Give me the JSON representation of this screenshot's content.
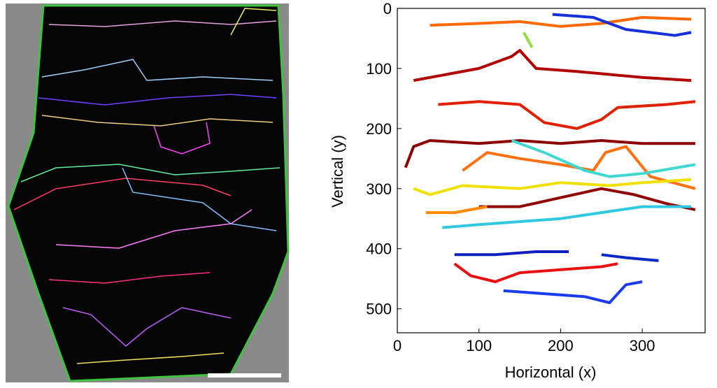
{
  "chart_data": {
    "type": "line",
    "xlabel": "Horizontal (x)",
    "ylabel": "Vertical (y)",
    "xlim": [
      0,
      377
    ],
    "ylim": [
      0,
      540
    ],
    "y_inverted": true,
    "xticks": [
      0,
      100,
      200,
      300
    ],
    "yticks": [
      0,
      100,
      200,
      300,
      400,
      500
    ],
    "series": [
      {
        "color": "#ff6a00",
        "x": [
          40,
          100,
          150,
          200,
          250,
          300,
          360
        ],
        "values": [
          28,
          25,
          22,
          30,
          25,
          15,
          18
        ]
      },
      {
        "color": "#1530d8",
        "x": [
          190,
          240,
          280,
          340,
          360
        ],
        "values": [
          10,
          15,
          35,
          45,
          40
        ]
      },
      {
        "color": "#b00000",
        "x": [
          20,
          60,
          100,
          140,
          150,
          170,
          220,
          260,
          300,
          360
        ],
        "values": [
          120,
          110,
          100,
          80,
          70,
          100,
          105,
          110,
          115,
          120
        ]
      },
      {
        "color": "#e02000",
        "x": [
          50,
          100,
          150,
          180,
          220,
          250,
          270,
          330,
          365
        ],
        "values": [
          160,
          155,
          160,
          190,
          200,
          185,
          165,
          160,
          155
        ]
      },
      {
        "color": "#8b0000",
        "x": [
          10,
          20,
          40,
          100,
          150,
          200,
          250,
          300,
          365
        ],
        "values": [
          265,
          230,
          220,
          225,
          220,
          225,
          220,
          225,
          225
        ]
      },
      {
        "color": "#ff7010",
        "x": [
          80,
          110,
          150,
          200,
          240,
          255,
          280,
          310,
          365
        ],
        "values": [
          270,
          240,
          250,
          260,
          270,
          240,
          230,
          280,
          300
        ]
      },
      {
        "color": "#f0e000",
        "x": [
          20,
          40,
          80,
          150,
          200,
          260,
          300,
          360
        ],
        "values": [
          300,
          310,
          295,
          300,
          290,
          295,
          290,
          285
        ]
      },
      {
        "color": "#900000",
        "x": [
          100,
          150,
          200,
          250,
          290,
          330,
          365
        ],
        "values": [
          330,
          330,
          315,
          300,
          310,
          325,
          335
        ]
      },
      {
        "color": "#30c8e0",
        "x": [
          55,
          100,
          150,
          200,
          250,
          300,
          360
        ],
        "values": [
          365,
          360,
          355,
          350,
          340,
          330,
          330
        ]
      },
      {
        "color": "#ff8a00",
        "x": [
          35,
          70,
          110
        ],
        "values": [
          340,
          340,
          330
        ]
      },
      {
        "color": "#1020c0",
        "x": [
          70,
          120,
          170,
          210
        ],
        "values": [
          410,
          410,
          405,
          405
        ]
      },
      {
        "color": "#e81010",
        "x": [
          70,
          90,
          120,
          150,
          200,
          250,
          270
        ],
        "values": [
          425,
          445,
          455,
          440,
          435,
          430,
          425
        ]
      },
      {
        "color": "#1a3cf0",
        "x": [
          130,
          180,
          230,
          260,
          280,
          300
        ],
        "values": [
          470,
          475,
          480,
          490,
          460,
          455
        ]
      },
      {
        "color": "#90e040",
        "x": [
          155,
          165
        ],
        "values": [
          40,
          65
        ]
      },
      {
        "color": "#0a28c8",
        "x": [
          250,
          280,
          320
        ],
        "values": [
          410,
          415,
          420
        ]
      },
      {
        "color": "#40d8d0",
        "x": [
          140,
          180,
          230,
          260,
          300,
          365
        ],
        "values": [
          220,
          240,
          270,
          280,
          275,
          260
        ]
      }
    ]
  }
}
